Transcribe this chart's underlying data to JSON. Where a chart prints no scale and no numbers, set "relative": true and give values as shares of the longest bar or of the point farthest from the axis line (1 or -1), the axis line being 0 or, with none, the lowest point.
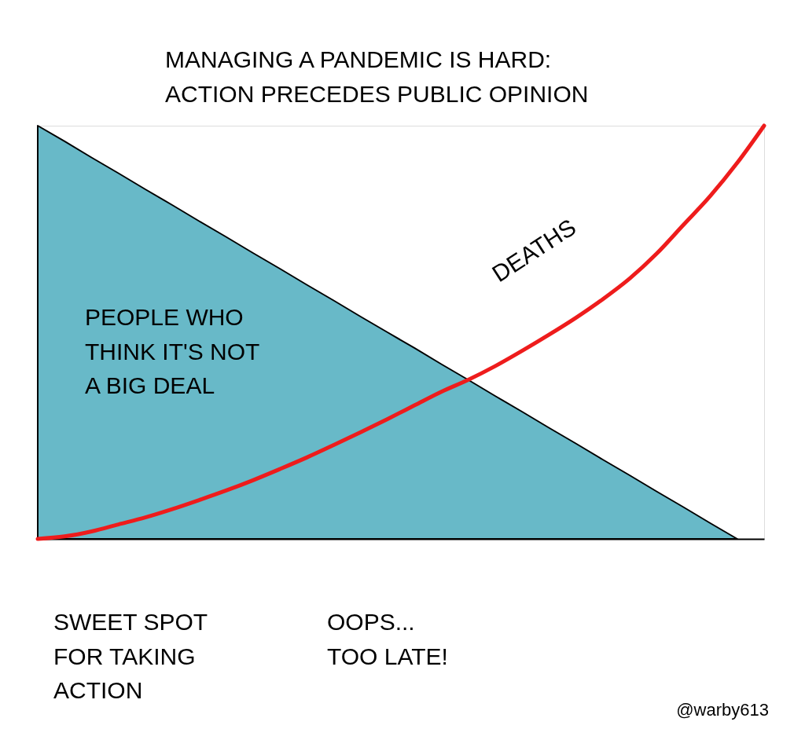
{
  "chart_data": {
    "type": "area",
    "relative": true,
    "title": "MANAGING A PANDEMIC IS HARD:\nACTION PRECEDES PUBLIC OPINION",
    "categories": [
      null,
      null,
      null,
      null,
      null,
      null,
      null,
      null,
      null,
      null,
      null,
      null,
      null,
      null,
      null,
      null,
      null,
      null,
      null,
      null,
      null,
      null,
      null,
      null,
      null,
      null,
      null,
      null
    ],
    "series": [
      {
        "color": "#68b9c8",
        "values": [
          1,
          0.962,
          0.923,
          0.885,
          0.846,
          0.808,
          0.769,
          0.731,
          0.692,
          0.654,
          0.615,
          0.577,
          0.538,
          0.5,
          0.462,
          0.423,
          0.385,
          0.346,
          0.308,
          0.269,
          0.231,
          0.192,
          0.154,
          0.115,
          0.077,
          0.038,
          0,
          null
        ]
      },
      {
        "type": "line",
        "color": "#ee1c1c",
        "values": [
          0,
          0.006,
          0.018,
          0.035,
          0.052,
          0.072,
          0.094,
          0.117,
          0.142,
          0.169,
          0.197,
          0.227,
          0.258,
          0.29,
          0.323,
          0.356,
          0.385,
          0.418,
          0.455,
          0.494,
          0.535,
          0.58,
          0.63,
          0.69,
          0.76,
          0.83,
          0.91,
          1.0
        ]
      }
    ],
    "annotations": [
      "PEOPLE WHO\nTHINK IT'S NOT\nA BIG DEAL",
      "DEATHS",
      "SWEET SPOT\nFOR TAKING\nACTION",
      "OOPS...\nTOO LATE!",
      "@warby613"
    ],
    "grid": false
  }
}
